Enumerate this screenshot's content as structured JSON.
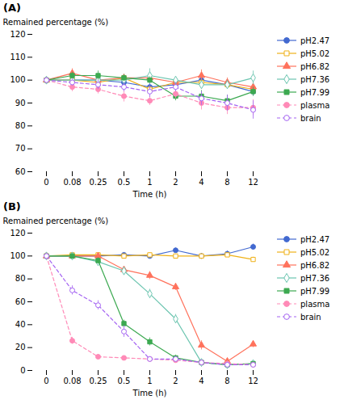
{
  "chart_data": [
    {
      "type": "line",
      "title": "(A)",
      "xlabel": "Time (h)",
      "ylabel": "Remained percentage (%)",
      "categories": [
        "0",
        "0.08",
        "0.25",
        "0.5",
        "1",
        "2",
        "4",
        "8",
        "12"
      ],
      "ylim": [
        60,
        120
      ],
      "yticks": [
        60,
        70,
        80,
        90,
        100,
        110,
        120
      ],
      "grid": false,
      "legend": "right",
      "series": [
        {
          "name": "pH2.47",
          "marker": "circle",
          "line_style": "solid",
          "values": [
            100,
            100,
            100,
            99,
            97,
            98,
            100,
            98,
            95
          ],
          "err": [
            0.5,
            1.5,
            1.0,
            1.2,
            1.5,
            1.0,
            2.0,
            1.5,
            2.0
          ]
        },
        {
          "name": "pH5.02",
          "marker": "square-open",
          "line_style": "solid",
          "values": [
            100,
            100,
            99,
            101,
            96,
            99,
            99,
            98,
            96
          ],
          "err": [
            0.5,
            1.2,
            1.5,
            1.0,
            1.5,
            1.2,
            1.8,
            1.5,
            2.0
          ]
        },
        {
          "name": "pH6.82",
          "marker": "triangle",
          "line_style": "solid",
          "values": [
            100,
            103,
            100,
            101,
            101,
            99,
            102,
            99,
            97
          ],
          "err": [
            0.5,
            2.0,
            1.5,
            1.5,
            2.0,
            1.5,
            2.5,
            2.0,
            2.5
          ]
        },
        {
          "name": "pH7.36",
          "marker": "diamond-open",
          "line_style": "solid",
          "values": [
            100,
            100,
            100,
            100,
            102,
            100,
            98,
            98,
            101
          ],
          "err": [
            0.5,
            1.5,
            1.5,
            2.0,
            3.0,
            1.5,
            2.0,
            2.0,
            3.0
          ]
        },
        {
          "name": "pH7.99",
          "marker": "square",
          "line_style": "solid",
          "values": [
            100,
            102,
            102,
            101,
            100,
            93,
            93,
            91,
            95
          ],
          "err": [
            0.5,
            1.5,
            2.0,
            1.5,
            1.5,
            2.0,
            2.5,
            2.5,
            2.0
          ]
        },
        {
          "name": "plasma",
          "marker": "circle",
          "line_style": "dashed",
          "values": [
            100,
            97,
            96,
            93,
            91,
            94,
            90,
            88,
            88
          ],
          "err": [
            0.5,
            2.0,
            2.0,
            2.5,
            2.0,
            2.0,
            3.0,
            3.0,
            3.5
          ]
        },
        {
          "name": "brain",
          "marker": "circle-open",
          "line_style": "dashed",
          "values": [
            100,
            99,
            98,
            97,
            95,
            97,
            92,
            90,
            87
          ],
          "err": [
            0.5,
            1.5,
            2.0,
            2.0,
            2.5,
            2.0,
            3.0,
            3.5,
            4.0
          ]
        }
      ]
    },
    {
      "type": "line",
      "title": "(B)",
      "xlabel": "Time (h)",
      "ylabel": "Remained percentage (%)",
      "categories": [
        "0",
        "0.08",
        "0.25",
        "0.5",
        "1",
        "2",
        "4",
        "8",
        "12"
      ],
      "ylim": [
        0,
        120
      ],
      "yticks": [
        0,
        20,
        40,
        60,
        80,
        100,
        120
      ],
      "grid": false,
      "legend": "right",
      "series": [
        {
          "name": "pH2.47",
          "marker": "circle",
          "line_style": "solid",
          "values": [
            100,
            100,
            100,
            101,
            100,
            105,
            100,
            102,
            108
          ],
          "err": [
            0.5,
            1.0,
            1.5,
            1.5,
            1.5,
            2.0,
            2.0,
            2.5,
            2.5
          ]
        },
        {
          "name": "pH5.02",
          "marker": "square-open",
          "line_style": "solid",
          "values": [
            100,
            101,
            101,
            100,
            101,
            100,
            100,
            101,
            97
          ],
          "err": [
            0.5,
            1.0,
            1.5,
            1.5,
            2.0,
            1.5,
            2.0,
            2.0,
            2.0
          ]
        },
        {
          "name": "pH6.82",
          "marker": "triangle",
          "line_style": "solid",
          "values": [
            100,
            100,
            100,
            88,
            83,
            73,
            22,
            8,
            23
          ],
          "err": [
            0.5,
            1.5,
            2.0,
            3.0,
            3.5,
            3.0,
            4.0,
            2.0,
            3.0
          ]
        },
        {
          "name": "pH7.36",
          "marker": "diamond-open",
          "line_style": "solid",
          "values": [
            100,
            100,
            95,
            87,
            67,
            45,
            7,
            5,
            6
          ],
          "err": [
            0.5,
            1.5,
            2.0,
            3.0,
            4.0,
            4.0,
            2.0,
            1.5,
            2.0
          ]
        },
        {
          "name": "pH7.99",
          "marker": "square",
          "line_style": "solid",
          "values": [
            100,
            100,
            96,
            41,
            25,
            11,
            7,
            5,
            6
          ],
          "err": [
            0.5,
            2.0,
            2.5,
            3.0,
            3.5,
            2.5,
            2.0,
            1.5,
            1.5
          ]
        },
        {
          "name": "plasma",
          "marker": "circle",
          "line_style": "dashed",
          "values": [
            100,
            26,
            12,
            11,
            10,
            9,
            7,
            6,
            5
          ],
          "err": [
            0.5,
            3.0,
            2.0,
            1.5,
            1.5,
            1.5,
            1.5,
            1.0,
            1.0
          ]
        },
        {
          "name": "brain",
          "marker": "circle-open",
          "line_style": "dashed",
          "values": [
            100,
            70,
            57,
            34,
            10,
            10,
            7,
            5,
            5
          ],
          "err": [
            0.5,
            4.0,
            4.0,
            5.0,
            2.0,
            2.0,
            2.0,
            1.0,
            1.0
          ]
        }
      ]
    }
  ]
}
